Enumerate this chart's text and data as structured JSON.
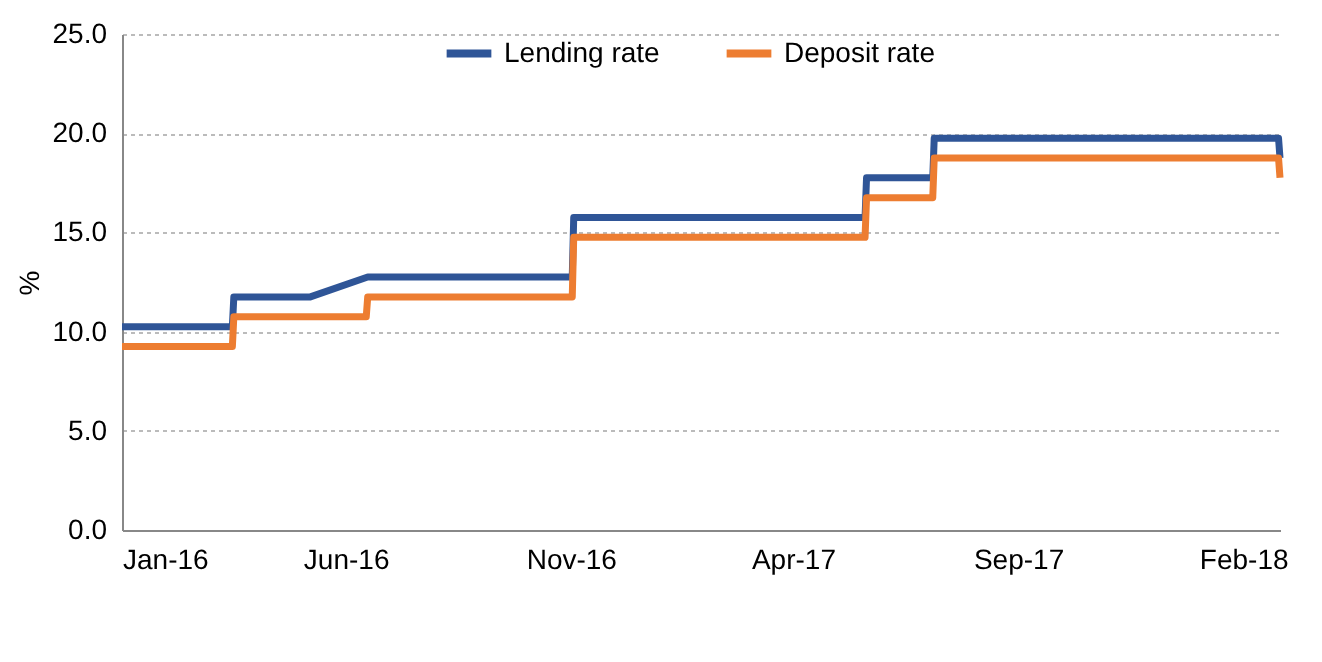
{
  "chart_data": {
    "type": "line",
    "ylabel": "%",
    "legend": "top",
    "grid": "y",
    "marker": "none",
    "line_style": "solid",
    "xlim": [
      "2016-01-01",
      "2018-02-26"
    ],
    "xticks": [
      {
        "value": "2016-01-01",
        "label": "Jan-16"
      },
      {
        "value": "2016-06-01",
        "label": "Jun-16"
      },
      {
        "value": "2016-11-01",
        "label": "Nov-16"
      },
      {
        "value": "2017-04-01",
        "label": "Apr-17"
      },
      {
        "value": "2017-09-01",
        "label": "Sep-17"
      },
      {
        "value": "2018-02-01",
        "label": "Feb-18"
      }
    ],
    "ylim": [
      0,
      25
    ],
    "yticks": [
      {
        "value": 0,
        "label": "0.0"
      },
      {
        "value": 5,
        "label": "5.0"
      },
      {
        "value": 10,
        "label": "10.0"
      },
      {
        "value": 15,
        "label": "15.0"
      },
      {
        "value": 20,
        "label": "20.0"
      },
      {
        "value": 25,
        "label": "25.0"
      }
    ],
    "series": [
      {
        "name": "Lending rate",
        "color": "#2f5597",
        "x": [
          "2016-01-01",
          "2016-03-16",
          "2016-03-17",
          "2016-05-08",
          "2016-06-16",
          "2016-11-02",
          "2016-11-03",
          "2017-05-20",
          "2017-05-21",
          "2017-07-05",
          "2017-07-06",
          "2018-02-25",
          "2018-02-26"
        ],
        "values": [
          10.25,
          10.25,
          11.75,
          11.75,
          12.75,
          12.75,
          15.75,
          15.75,
          17.75,
          17.75,
          19.75,
          19.75,
          18.75
        ]
      },
      {
        "name": "Deposit rate",
        "color": "#ed7d31",
        "x": [
          "2016-01-01",
          "2016-03-16",
          "2016-03-17",
          "2016-06-15",
          "2016-06-16",
          "2016-11-02",
          "2016-11-03",
          "2017-05-20",
          "2017-05-21",
          "2017-07-05",
          "2017-07-06",
          "2018-02-25",
          "2018-02-26"
        ],
        "values": [
          9.25,
          9.25,
          10.75,
          10.75,
          11.75,
          11.75,
          14.75,
          14.75,
          16.75,
          16.75,
          18.75,
          18.75,
          17.75
        ]
      }
    ]
  }
}
